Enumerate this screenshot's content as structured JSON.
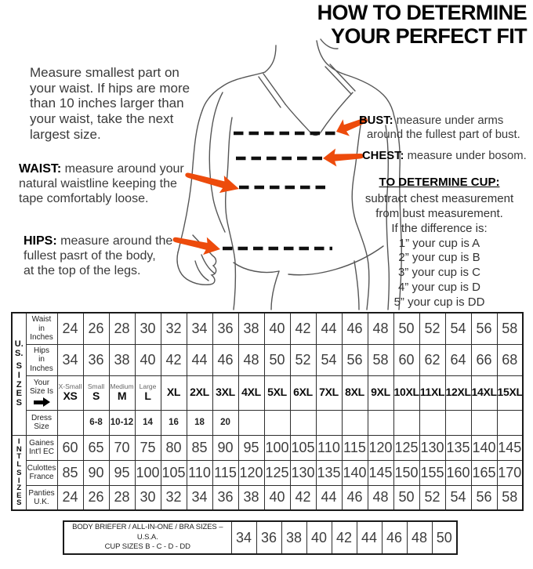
{
  "title": {
    "line1": "HOW TO DETERMINE",
    "line2": "YOUR PERFECT FIT"
  },
  "intro": {
    "lines": [
      "Measure smallest part on",
      "your waist. If hips are more",
      "than 10 inches larger than",
      "your waist, take the next",
      "largest size."
    ]
  },
  "annotations": {
    "waist": {
      "label": "WAIST:",
      "lines": [
        "measure around your",
        "natural waistline keeping the",
        "tape comfortably loose."
      ]
    },
    "hips": {
      "label": "HIPS:",
      "lines": [
        "measure around the",
        "fullest pasrt of the body,",
        "at the top of the legs."
      ]
    },
    "bust": {
      "label": "BUST:",
      "lines": [
        "measure under arms",
        "around the fullest part of bust."
      ]
    },
    "chest": {
      "label": "CHEST:",
      "lines": [
        "measure under bosom."
      ]
    }
  },
  "cup": {
    "heading": "TO DETERMINE CUP:",
    "lines": [
      "subtract chest measurement",
      "from bust measurement.",
      "If the difference is:",
      "1” your cup is A",
      "2” your cup is B",
      "3” your cup is C",
      "4” your cup is D",
      "5” your cup is DD"
    ]
  },
  "size_table": {
    "us_label_top": [
      "U.",
      "S."
    ],
    "us_label_bottom": [
      "S",
      "I",
      "Z",
      "E",
      "S"
    ],
    "intl_label_top": [
      "I",
      "N",
      "T",
      "L"
    ],
    "intl_label_bottom": [
      "S",
      "I",
      "Z",
      "E",
      "S"
    ],
    "rows": [
      {
        "name": "waist",
        "label_lines": [
          "Waist",
          "in",
          "Inches"
        ],
        "values": [
          "24",
          "26",
          "28",
          "30",
          "32",
          "34",
          "36",
          "38",
          "40",
          "42",
          "44",
          "46",
          "48",
          "50",
          "52",
          "54",
          "56",
          "58"
        ]
      },
      {
        "name": "hips",
        "label_lines": [
          "Hips",
          "in",
          "Inches"
        ],
        "values": [
          "34",
          "36",
          "38",
          "40",
          "42",
          "44",
          "46",
          "48",
          "50",
          "52",
          "54",
          "56",
          "58",
          "60",
          "62",
          "64",
          "66",
          "68"
        ]
      },
      {
        "name": "your-size",
        "label_lines": [
          "Your",
          "Size Is"
        ],
        "sizes": [
          {
            "caption": "X-Small",
            "abbr": "XS"
          },
          {
            "caption": "Small",
            "abbr": "S"
          },
          {
            "caption": "Medium",
            "abbr": "M"
          },
          {
            "caption": "Large",
            "abbr": "L"
          },
          {
            "caption": "",
            "abbr": "XL"
          },
          {
            "caption": "",
            "abbr": "2XL"
          },
          {
            "caption": "",
            "abbr": "3XL"
          },
          {
            "caption": "",
            "abbr": "4XL"
          },
          {
            "caption": "",
            "abbr": "5XL"
          },
          {
            "caption": "",
            "abbr": "6XL"
          },
          {
            "caption": "",
            "abbr": "7XL"
          },
          {
            "caption": "",
            "abbr": "8XL"
          },
          {
            "caption": "",
            "abbr": "9XL"
          },
          {
            "caption": "",
            "abbr": "10XL"
          },
          {
            "caption": "",
            "abbr": "11XL"
          },
          {
            "caption": "",
            "abbr": "12XL"
          },
          {
            "caption": "",
            "abbr": "14XL"
          },
          {
            "caption": "",
            "abbr": "15XL"
          }
        ]
      },
      {
        "name": "dress",
        "label_lines": [
          "Dress",
          "Size"
        ],
        "values": [
          "",
          "6-8",
          "10-12",
          "14",
          "16",
          "18",
          "20",
          "",
          "",
          "",
          "",
          "",
          "",
          "",
          "",
          "",
          "",
          ""
        ]
      },
      {
        "name": "gaines",
        "label_lines": [
          "Gaines",
          "Int'l EC"
        ],
        "values": [
          "60",
          "65",
          "70",
          "75",
          "80",
          "85",
          "90",
          "95",
          "100",
          "105",
          "110",
          "115",
          "120",
          "125",
          "130",
          "135",
          "140",
          "145"
        ]
      },
      {
        "name": "culottes",
        "label_lines": [
          "Culottes",
          "France"
        ],
        "values": [
          "85",
          "90",
          "95",
          "100",
          "105",
          "110",
          "115",
          "120",
          "125",
          "130",
          "135",
          "140",
          "145",
          "150",
          "155",
          "160",
          "165",
          "170"
        ]
      },
      {
        "name": "panties",
        "label_lines": [
          "Panties",
          "U.K."
        ],
        "values": [
          "24",
          "26",
          "28",
          "30",
          "32",
          "34",
          "36",
          "38",
          "40",
          "42",
          "44",
          "46",
          "48",
          "50",
          "52",
          "54",
          "56",
          "58"
        ]
      }
    ]
  },
  "bra_table": {
    "label_lines": [
      "BODY BRIEFER / ALL-IN-ONE / BRA SIZES – U.S.A.",
      "CUP SIZES B - C - D - DD"
    ],
    "values": [
      "34",
      "36",
      "38",
      "40",
      "42",
      "44",
      "46",
      "48",
      "50"
    ]
  },
  "colors": {
    "arrow_accent": "#ed4b0c",
    "outline": "#565656",
    "dash_line": "#101010"
  }
}
